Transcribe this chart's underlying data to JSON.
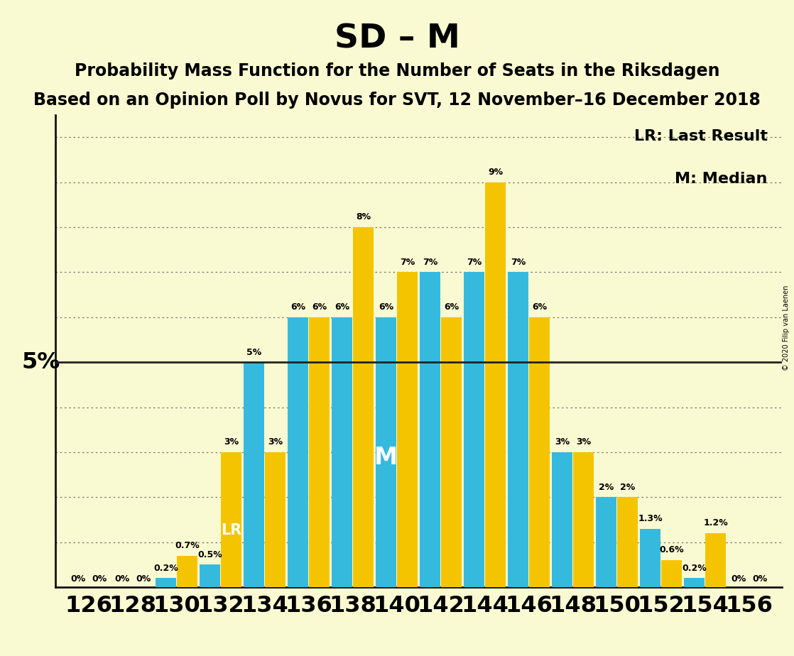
{
  "title": "SD – M",
  "subtitle1": "Probability Mass Function for the Number of Seats in the Riksdagen",
  "subtitle2": "Based on an Opinion Poll by Novus for SVT, 12 November–16 December 2018",
  "copyright": "© 2020 Filip van Laenen",
  "legend_lr": "LR: Last Result",
  "legend_m": "M: Median",
  "seats": [
    126,
    128,
    130,
    132,
    134,
    136,
    138,
    140,
    142,
    144,
    146,
    148,
    150,
    152,
    154,
    156
  ],
  "blue_values": [
    0.0,
    0.0,
    0.2,
    0.5,
    5.0,
    6.0,
    6.0,
    6.0,
    7.0,
    7.0,
    7.0,
    3.0,
    2.0,
    1.3,
    0.2,
    0.0
  ],
  "gold_values": [
    0.0,
    0.0,
    0.7,
    3.0,
    3.0,
    6.0,
    8.0,
    7.0,
    6.0,
    9.0,
    6.0,
    3.0,
    2.0,
    0.6,
    1.2,
    0.0
  ],
  "blue_labels": [
    "0%",
    "0%",
    "0.2%",
    "0.5%",
    "5%",
    "6%",
    "6%",
    "6%",
    "7%",
    "7%",
    "7%",
    "3%",
    "2%",
    "1.3%",
    "0.2%",
    "0%"
  ],
  "gold_labels": [
    "0%",
    "0%",
    "0.7%",
    "3%",
    "3%",
    "6%",
    "8%",
    "7%",
    "6%",
    "9%",
    "6%",
    "3%",
    "2%",
    "0.6%",
    "1.2%",
    "0%"
  ],
  "blue_color": "#35BADE",
  "gold_color": "#F5C400",
  "background_color": "#FAFAD2",
  "five_pct_line_color": "#222222",
  "grid_color": "#555555",
  "lr_seat": 132,
  "median_seat": 140,
  "ylim": [
    0,
    10.5
  ],
  "ylabel_5pct": "5%",
  "title_fontsize": 34,
  "subtitle_fontsize": 17,
  "axis_label_fontsize": 23,
  "bar_label_fontsize": 9,
  "legend_fontsize": 16
}
